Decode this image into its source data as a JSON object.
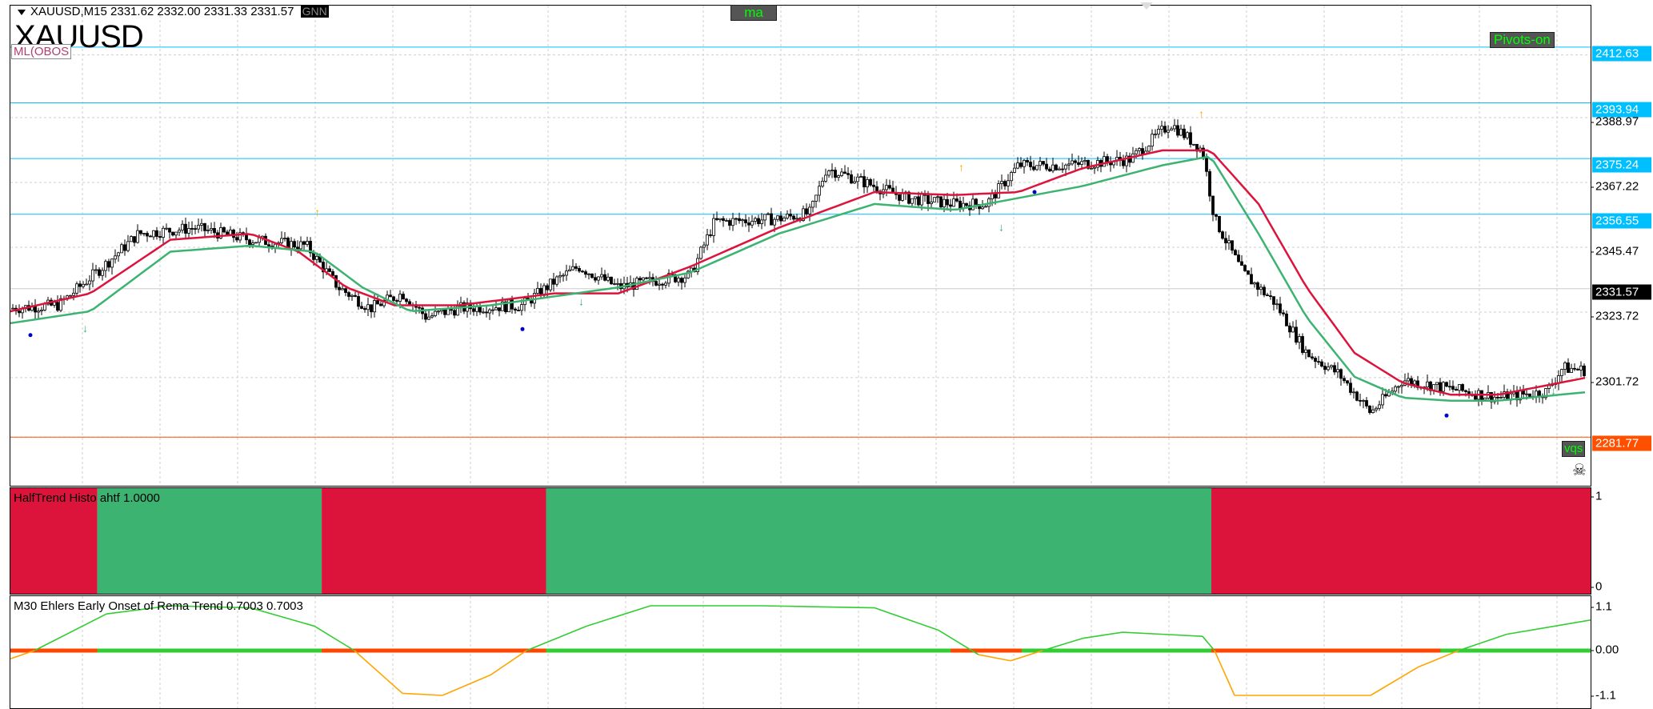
{
  "chart": {
    "symbol": "XAUUSD",
    "timeframe": "M15",
    "header": "XAUUSD,M15  2331.62 2332.00 2331.33 2331.57",
    "header_badge": "GNN",
    "big_symbol": "XAUUSD",
    "indicator_tag": "ML(OBOS",
    "buttons": {
      "ma": "ma",
      "pivots": "Pivots-on",
      "vqs": "vqs"
    },
    "skull": "☠",
    "price_scale": [
      "2388.97",
      "2367.22",
      "2345.47",
      "2323.72",
      "2301.72"
    ],
    "price_levels": {
      "pivot_lines": [
        "2412.63",
        "2393.94",
        "2375.24",
        "2356.55"
      ],
      "current": "2331.57",
      "support": "2281.77"
    },
    "colors": {
      "pivot": "#00bfff",
      "support": "#ff5000",
      "bull": "#3cb371",
      "bear": "#dc143c",
      "current_bg": "#000000"
    }
  },
  "halftrend": {
    "title": "HalfTrend Histo ahtf 1.0000",
    "scale": [
      "1",
      "0"
    ],
    "segments": [
      {
        "from": 0,
        "to": 0.055,
        "trend": "down"
      },
      {
        "from": 0.055,
        "to": 0.197,
        "trend": "up"
      },
      {
        "from": 0.197,
        "to": 0.339,
        "trend": "down"
      },
      {
        "from": 0.339,
        "to": 0.76,
        "trend": "up"
      },
      {
        "from": 0.76,
        "to": 1,
        "trend": "down"
      }
    ]
  },
  "ehlers": {
    "title": "M30 Ehlers Early Onset of Rema Trend 0.7003 0.7003",
    "scale": [
      "1.1",
      "0.00",
      "-1.1"
    ]
  }
}
